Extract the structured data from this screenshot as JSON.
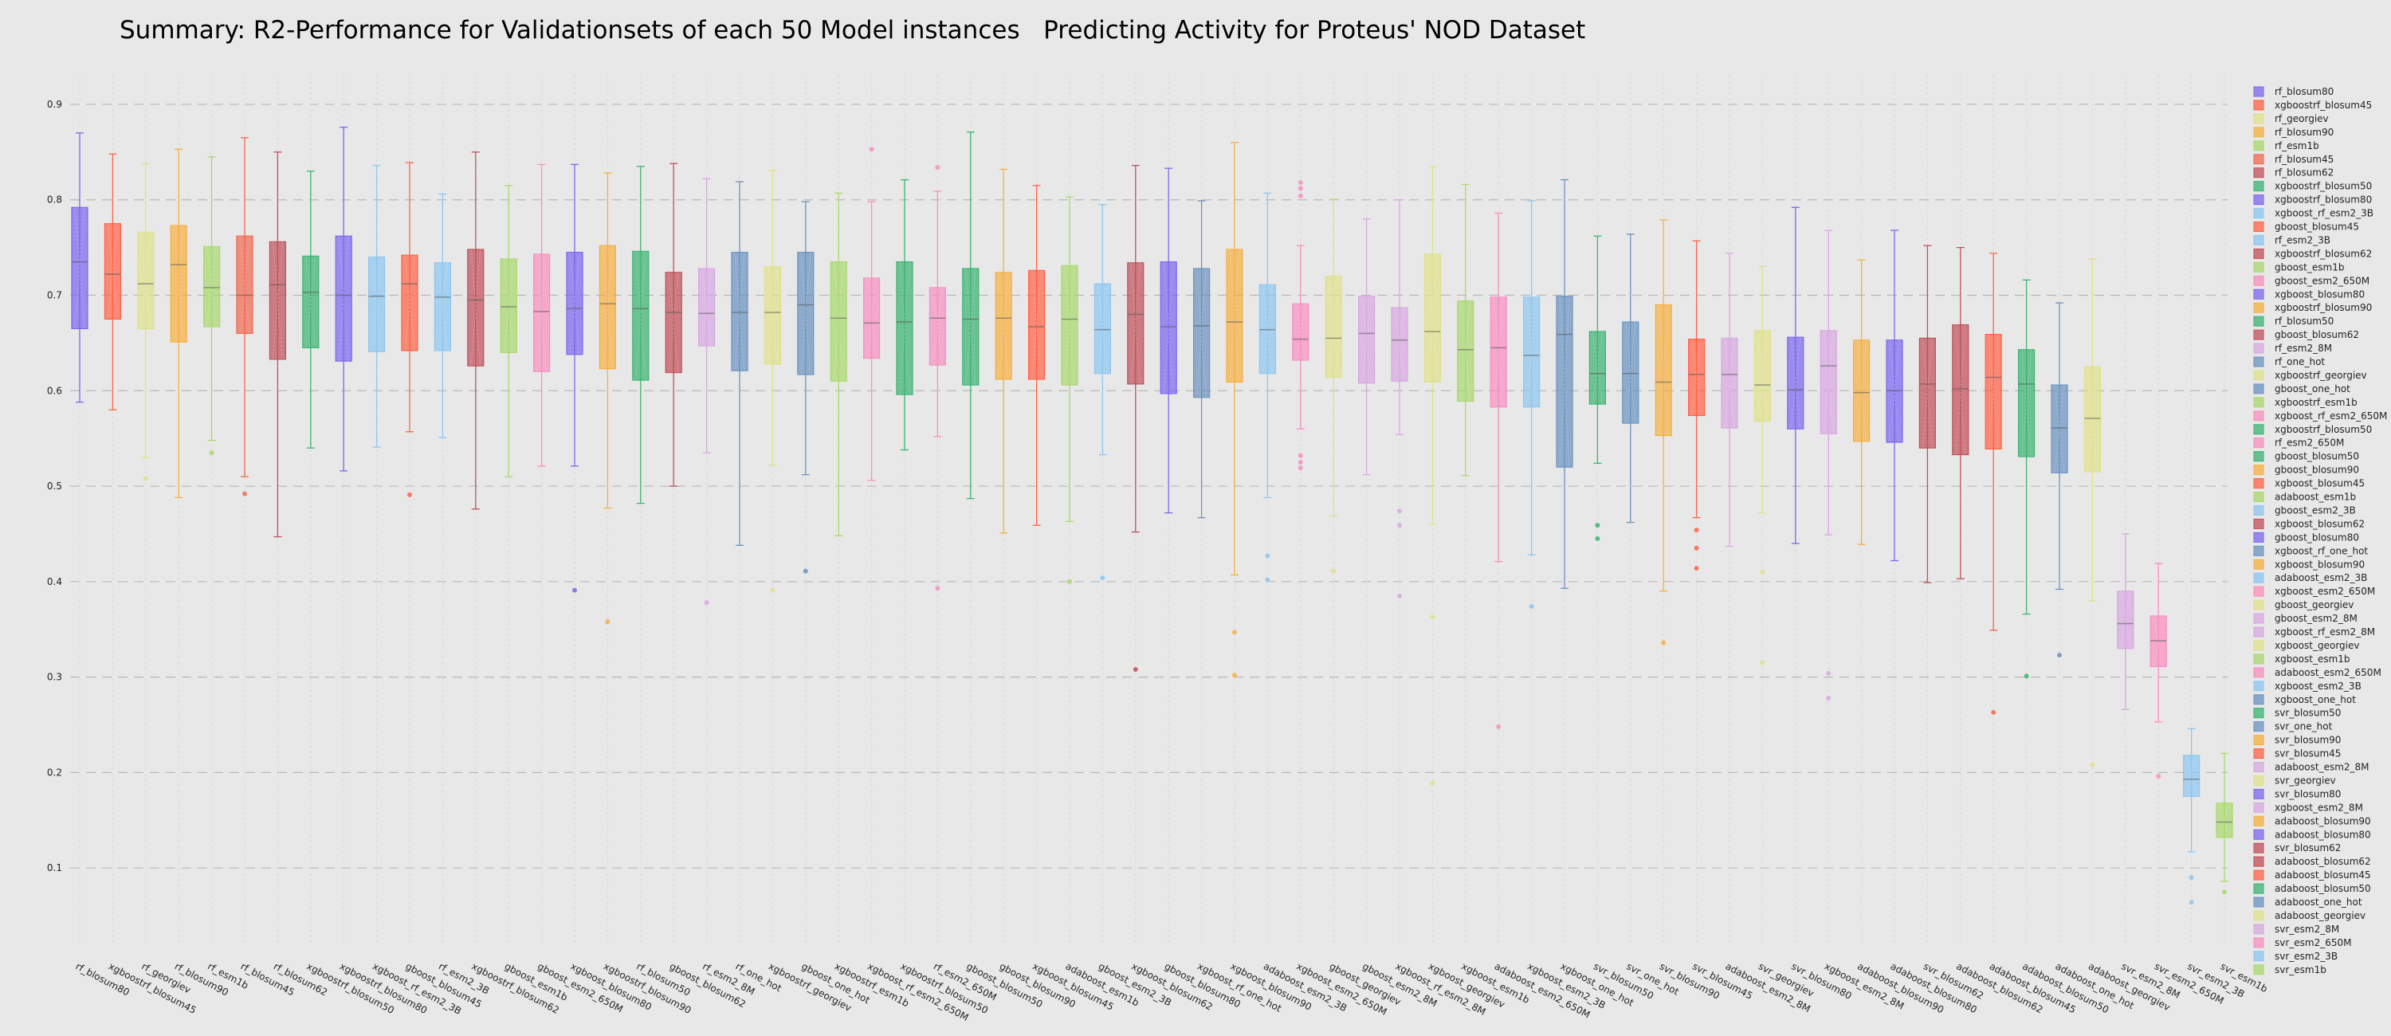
{
  "chart_data": {
    "type": "box",
    "title": "Summary: R2-Performance for Validationsets of each 50 Model instances   Predicting Activity for Proteus' NOD Dataset",
    "xlabel": "",
    "ylabel": "",
    "ylim": [
      0.02,
      0.93
    ],
    "yticks": [
      0.1,
      0.2,
      0.3,
      0.4,
      0.5,
      0.6,
      0.7,
      0.8,
      0.9
    ],
    "ytick_labels": [
      "0.1",
      "0.2",
      "0.3",
      "0.4",
      "0.5",
      "0.6",
      "0.7",
      "0.8",
      "0.9"
    ],
    "grid": true,
    "legend_position": "right",
    "series": [
      {
        "name": "rf_blosum80",
        "color": "#7b68ee",
        "q1": 0.665,
        "median": 0.735,
        "q3": 0.792,
        "whislo": 0.588,
        "whishi": 0.87,
        "fliers": []
      },
      {
        "name": "xgboostrf_blosum45",
        "color": "#ff6347",
        "q1": 0.675,
        "median": 0.722,
        "q3": 0.775,
        "whislo": 0.58,
        "whishi": 0.848,
        "fliers": []
      },
      {
        "name": "rf_georgiev",
        "color": "#e0e08a",
        "q1": 0.665,
        "median": 0.712,
        "q3": 0.766,
        "whislo": 0.53,
        "whishi": 0.838,
        "fliers": [
          0.508
        ]
      },
      {
        "name": "rf_blosum90",
        "color": "#f5b041",
        "q1": 0.651,
        "median": 0.732,
        "q3": 0.773,
        "whislo": 0.488,
        "whishi": 0.853,
        "fliers": []
      },
      {
        "name": "rf_esm1b",
        "color": "#a9d86e",
        "q1": 0.667,
        "median": 0.708,
        "q3": 0.751,
        "whislo": 0.548,
        "whishi": 0.845,
        "fliers": [
          0.535
        ]
      },
      {
        "name": "rf_blosum45",
        "color": "#f06a50",
        "q1": 0.66,
        "median": 0.7,
        "q3": 0.762,
        "whislo": 0.51,
        "whishi": 0.865,
        "fliers": [
          0.492
        ]
      },
      {
        "name": "rf_blosum62",
        "color": "#c0505a",
        "q1": 0.633,
        "median": 0.711,
        "q3": 0.756,
        "whislo": 0.447,
        "whishi": 0.85,
        "fliers": []
      },
      {
        "name": "xgboostrf_blosum50",
        "color": "#3cb371",
        "q1": 0.645,
        "median": 0.703,
        "q3": 0.741,
        "whislo": 0.54,
        "whishi": 0.83,
        "fliers": []
      },
      {
        "name": "xgboostrf_blosum80",
        "color": "#7b68ee",
        "q1": 0.631,
        "median": 0.7,
        "q3": 0.762,
        "whislo": 0.516,
        "whishi": 0.876,
        "fliers": []
      },
      {
        "name": "xgboost_rf_esm2_3B",
        "color": "#8ec6f0",
        "q1": 0.641,
        "median": 0.699,
        "q3": 0.74,
        "whislo": 0.541,
        "whishi": 0.836,
        "fliers": []
      },
      {
        "name": "gboost_blosum45",
        "color": "#ff6347",
        "q1": 0.642,
        "median": 0.712,
        "q3": 0.742,
        "whislo": 0.557,
        "whishi": 0.839,
        "fliers": [
          0.491
        ]
      },
      {
        "name": "rf_esm2_3B",
        "color": "#8ec6f0",
        "q1": 0.642,
        "median": 0.698,
        "q3": 0.734,
        "whislo": 0.551,
        "whishi": 0.806,
        "fliers": []
      },
      {
        "name": "xgboostrf_blosum62",
        "color": "#c0505a",
        "q1": 0.626,
        "median": 0.695,
        "q3": 0.748,
        "whislo": 0.476,
        "whishi": 0.85,
        "fliers": []
      },
      {
        "name": "gboost_esm1b",
        "color": "#a9d86e",
        "q1": 0.64,
        "median": 0.688,
        "q3": 0.738,
        "whislo": 0.51,
        "whishi": 0.815,
        "fliers": []
      },
      {
        "name": "gboost_esm2_650M",
        "color": "#f78fc0",
        "q1": 0.62,
        "median": 0.683,
        "q3": 0.743,
        "whislo": 0.521,
        "whishi": 0.837,
        "fliers": []
      },
      {
        "name": "xgboost_blosum80",
        "color": "#7b68ee",
        "q1": 0.638,
        "median": 0.686,
        "q3": 0.745,
        "whislo": 0.521,
        "whishi": 0.837,
        "fliers": [
          0.391
        ]
      },
      {
        "name": "xgboostrf_blosum90",
        "color": "#f5b041",
        "q1": 0.623,
        "median": 0.691,
        "q3": 0.752,
        "whislo": 0.477,
        "whishi": 0.828,
        "fliers": [
          0.358
        ]
      },
      {
        "name": "rf_blosum50",
        "color": "#3cb371",
        "q1": 0.611,
        "median": 0.686,
        "q3": 0.746,
        "whislo": 0.482,
        "whishi": 0.835,
        "fliers": []
      },
      {
        "name": "gboost_blosum62",
        "color": "#c0505a",
        "q1": 0.619,
        "median": 0.682,
        "q3": 0.724,
        "whislo": 0.5,
        "whishi": 0.838,
        "fliers": []
      },
      {
        "name": "rf_esm2_8M",
        "color": "#d8a8e0",
        "q1": 0.647,
        "median": 0.681,
        "q3": 0.728,
        "whislo": 0.535,
        "whishi": 0.822,
        "fliers": [
          0.378
        ]
      },
      {
        "name": "rf_one_hot",
        "color": "#6b93c0",
        "q1": 0.621,
        "median": 0.682,
        "q3": 0.745,
        "whislo": 0.438,
        "whishi": 0.819,
        "fliers": []
      },
      {
        "name": "xgboostrf_georgiev",
        "color": "#e0e08a",
        "q1": 0.628,
        "median": 0.682,
        "q3": 0.73,
        "whislo": 0.522,
        "whishi": 0.831,
        "fliers": [
          0.391
        ]
      },
      {
        "name": "gboost_one_hot",
        "color": "#6b93c0",
        "q1": 0.617,
        "median": 0.69,
        "q3": 0.745,
        "whislo": 0.512,
        "whishi": 0.798,
        "fliers": [
          0.411
        ]
      },
      {
        "name": "xgboostrf_esm1b",
        "color": "#a9d86e",
        "q1": 0.61,
        "median": 0.676,
        "q3": 0.735,
        "whislo": 0.448,
        "whishi": 0.807,
        "fliers": []
      },
      {
        "name": "xgboost_rf_esm2_650M",
        "color": "#f78fc0",
        "q1": 0.634,
        "median": 0.671,
        "q3": 0.718,
        "whislo": 0.506,
        "whishi": 0.798,
        "fliers": [
          0.853
        ]
      },
      {
        "name": "xgboostrf_blosum50",
        "color": "#3cb371",
        "q1": 0.596,
        "median": 0.672,
        "q3": 0.735,
        "whislo": 0.538,
        "whishi": 0.821,
        "fliers": []
      },
      {
        "name": "rf_esm2_650M",
        "color": "#f78fc0",
        "q1": 0.627,
        "median": 0.676,
        "q3": 0.708,
        "whislo": 0.552,
        "whishi": 0.809,
        "fliers": [
          0.834,
          0.393
        ]
      },
      {
        "name": "gboost_blosum50",
        "color": "#3cb371",
        "q1": 0.606,
        "median": 0.675,
        "q3": 0.728,
        "whislo": 0.487,
        "whishi": 0.871,
        "fliers": []
      },
      {
        "name": "gboost_blosum90",
        "color": "#f5b041",
        "q1": 0.612,
        "median": 0.676,
        "q3": 0.724,
        "whislo": 0.451,
        "whishi": 0.832,
        "fliers": []
      },
      {
        "name": "xgboost_blosum45",
        "color": "#ff6347",
        "q1": 0.612,
        "median": 0.667,
        "q3": 0.726,
        "whislo": 0.459,
        "whishi": 0.815,
        "fliers": []
      },
      {
        "name": "adaboost_esm1b",
        "color": "#a9d86e",
        "q1": 0.606,
        "median": 0.675,
        "q3": 0.731,
        "whislo": 0.463,
        "whishi": 0.803,
        "fliers": [
          0.4
        ]
      },
      {
        "name": "gboost_esm2_3B",
        "color": "#8ec6f0",
        "q1": 0.618,
        "median": 0.664,
        "q3": 0.712,
        "whislo": 0.533,
        "whishi": 0.795,
        "fliers": [
          0.404
        ]
      },
      {
        "name": "xgboost_blosum62",
        "color": "#c0505a",
        "q1": 0.607,
        "median": 0.68,
        "q3": 0.734,
        "whislo": 0.452,
        "whishi": 0.836,
        "fliers": [
          0.308
        ]
      },
      {
        "name": "gboost_blosum80",
        "color": "#7b68ee",
        "q1": 0.597,
        "median": 0.667,
        "q3": 0.735,
        "whislo": 0.472,
        "whishi": 0.833,
        "fliers": []
      },
      {
        "name": "xgboost_rf_one_hot",
        "color": "#6b93c0",
        "q1": 0.593,
        "median": 0.668,
        "q3": 0.728,
        "whislo": 0.467,
        "whishi": 0.799,
        "fliers": []
      },
      {
        "name": "xgboost_blosum90",
        "color": "#f5b041",
        "q1": 0.609,
        "median": 0.672,
        "q3": 0.748,
        "whislo": 0.407,
        "whishi": 0.86,
        "fliers": [
          0.347,
          0.302
        ]
      },
      {
        "name": "adaboost_esm2_3B",
        "color": "#8ec6f0",
        "q1": 0.618,
        "median": 0.664,
        "q3": 0.711,
        "whislo": 0.488,
        "whishi": 0.807,
        "fliers": [
          0.427,
          0.402
        ]
      },
      {
        "name": "xgboost_esm2_650M",
        "color": "#f78fc0",
        "q1": 0.632,
        "median": 0.654,
        "q3": 0.691,
        "whislo": 0.56,
        "whishi": 0.752,
        "fliers": [
          0.818,
          0.812,
          0.804,
          0.532,
          0.525,
          0.519
        ]
      },
      {
        "name": "gboost_georgiev",
        "color": "#e0e08a",
        "q1": 0.614,
        "median": 0.655,
        "q3": 0.72,
        "whislo": 0.469,
        "whishi": 0.801,
        "fliers": [
          0.411
        ]
      },
      {
        "name": "gboost_esm2_8M",
        "color": "#d8a8e0",
        "q1": 0.608,
        "median": 0.66,
        "q3": 0.699,
        "whislo": 0.512,
        "whishi": 0.78,
        "fliers": []
      },
      {
        "name": "xgboost_rf_esm2_8M",
        "color": "#d8a8e0",
        "q1": 0.61,
        "median": 0.653,
        "q3": 0.687,
        "whislo": 0.554,
        "whishi": 0.8,
        "fliers": [
          0.474,
          0.459,
          0.385
        ]
      },
      {
        "name": "xgboost_georgiev",
        "color": "#e0e08a",
        "q1": 0.609,
        "median": 0.662,
        "q3": 0.743,
        "whislo": 0.46,
        "whishi": 0.835,
        "fliers": [
          0.363,
          0.189
        ]
      },
      {
        "name": "xgboost_esm1b",
        "color": "#a9d86e",
        "q1": 0.589,
        "median": 0.643,
        "q3": 0.694,
        "whislo": 0.511,
        "whishi": 0.816,
        "fliers": []
      },
      {
        "name": "adaboost_esm2_650M",
        "color": "#f78fc0",
        "q1": 0.583,
        "median": 0.645,
        "q3": 0.698,
        "whislo": 0.421,
        "whishi": 0.786,
        "fliers": [
          0.248
        ]
      },
      {
        "name": "xgboost_esm2_3B",
        "color": "#8ec6f0",
        "q1": 0.583,
        "median": 0.637,
        "q3": 0.698,
        "whislo": 0.428,
        "whishi": 0.799,
        "fliers": [
          0.374
        ]
      },
      {
        "name": "xgboost_one_hot",
        "color": "#6b93c0",
        "q1": 0.52,
        "median": 0.659,
        "q3": 0.699,
        "whislo": 0.393,
        "whishi": 0.821,
        "fliers": []
      },
      {
        "name": "svr_blosum50",
        "color": "#3cb371",
        "q1": 0.586,
        "median": 0.618,
        "q3": 0.662,
        "whislo": 0.524,
        "whishi": 0.762,
        "fliers": [
          0.459,
          0.445
        ]
      },
      {
        "name": "svr_one_hot",
        "color": "#6b93c0",
        "q1": 0.566,
        "median": 0.618,
        "q3": 0.672,
        "whislo": 0.462,
        "whishi": 0.764,
        "fliers": []
      },
      {
        "name": "svr_blosum90",
        "color": "#f5b041",
        "q1": 0.553,
        "median": 0.609,
        "q3": 0.69,
        "whislo": 0.39,
        "whishi": 0.779,
        "fliers": [
          0.336
        ]
      },
      {
        "name": "svr_blosum45",
        "color": "#ff6347",
        "q1": 0.574,
        "median": 0.617,
        "q3": 0.654,
        "whislo": 0.467,
        "whishi": 0.757,
        "fliers": [
          0.454,
          0.435,
          0.414
        ]
      },
      {
        "name": "adaboost_esm2_8M",
        "color": "#d8a8e0",
        "q1": 0.561,
        "median": 0.617,
        "q3": 0.655,
        "whislo": 0.437,
        "whishi": 0.744,
        "fliers": []
      },
      {
        "name": "svr_georgiev",
        "color": "#e0e08a",
        "q1": 0.568,
        "median": 0.606,
        "q3": 0.663,
        "whislo": 0.472,
        "whishi": 0.73,
        "fliers": [
          0.41,
          0.315
        ]
      },
      {
        "name": "svr_blosum80",
        "color": "#7b68ee",
        "q1": 0.56,
        "median": 0.601,
        "q3": 0.656,
        "whislo": 0.44,
        "whishi": 0.792,
        "fliers": []
      },
      {
        "name": "xgboost_esm2_8M",
        "color": "#d8a8e0",
        "q1": 0.555,
        "median": 0.626,
        "q3": 0.663,
        "whislo": 0.449,
        "whishi": 0.768,
        "fliers": [
          0.304,
          0.278
        ]
      },
      {
        "name": "adaboost_blosum90",
        "color": "#f5b041",
        "q1": 0.547,
        "median": 0.598,
        "q3": 0.653,
        "whislo": 0.439,
        "whishi": 0.737,
        "fliers": []
      },
      {
        "name": "adaboost_blosum80",
        "color": "#7b68ee",
        "q1": 0.546,
        "median": 0.6,
        "q3": 0.653,
        "whislo": 0.422,
        "whishi": 0.768,
        "fliers": []
      },
      {
        "name": "svr_blosum62",
        "color": "#c0505a",
        "q1": 0.54,
        "median": 0.607,
        "q3": 0.655,
        "whislo": 0.399,
        "whishi": 0.752,
        "fliers": []
      },
      {
        "name": "adaboost_blosum62",
        "color": "#c0505a",
        "q1": 0.533,
        "median": 0.602,
        "q3": 0.669,
        "whislo": 0.403,
        "whishi": 0.75,
        "fliers": []
      },
      {
        "name": "adaboost_blosum45",
        "color": "#ff6347",
        "q1": 0.539,
        "median": 0.614,
        "q3": 0.659,
        "whislo": 0.349,
        "whishi": 0.744,
        "fliers": [
          0.263
        ]
      },
      {
        "name": "adaboost_blosum50",
        "color": "#3cb371",
        "q1": 0.531,
        "median": 0.607,
        "q3": 0.643,
        "whislo": 0.366,
        "whishi": 0.716,
        "fliers": [
          0.301
        ]
      },
      {
        "name": "adaboost_one_hot",
        "color": "#6b93c0",
        "q1": 0.514,
        "median": 0.561,
        "q3": 0.606,
        "whislo": 0.392,
        "whishi": 0.692,
        "fliers": [
          0.323
        ]
      },
      {
        "name": "adaboost_georgiev",
        "color": "#e0e08a",
        "q1": 0.515,
        "median": 0.571,
        "q3": 0.625,
        "whislo": 0.38,
        "whishi": 0.738,
        "fliers": [
          0.208
        ]
      },
      {
        "name": "svr_esm2_8M",
        "color": "#d8a8e0",
        "q1": 0.33,
        "median": 0.356,
        "q3": 0.39,
        "whislo": 0.266,
        "whishi": 0.45,
        "fliers": []
      },
      {
        "name": "svr_esm2_650M",
        "color": "#f78fc0",
        "q1": 0.311,
        "median": 0.338,
        "q3": 0.364,
        "whislo": 0.253,
        "whishi": 0.419,
        "fliers": [
          0.196
        ]
      },
      {
        "name": "svr_esm2_3B",
        "color": "#8ec6f0",
        "q1": 0.175,
        "median": 0.193,
        "q3": 0.218,
        "whislo": 0.117,
        "whishi": 0.246,
        "fliers": [
          0.09,
          0.064
        ]
      },
      {
        "name": "svr_esm1b",
        "color": "#a9d86e",
        "q1": 0.132,
        "median": 0.148,
        "q3": 0.168,
        "whislo": 0.086,
        "whishi": 0.22,
        "fliers": [
          0.075
        ]
      }
    ]
  }
}
